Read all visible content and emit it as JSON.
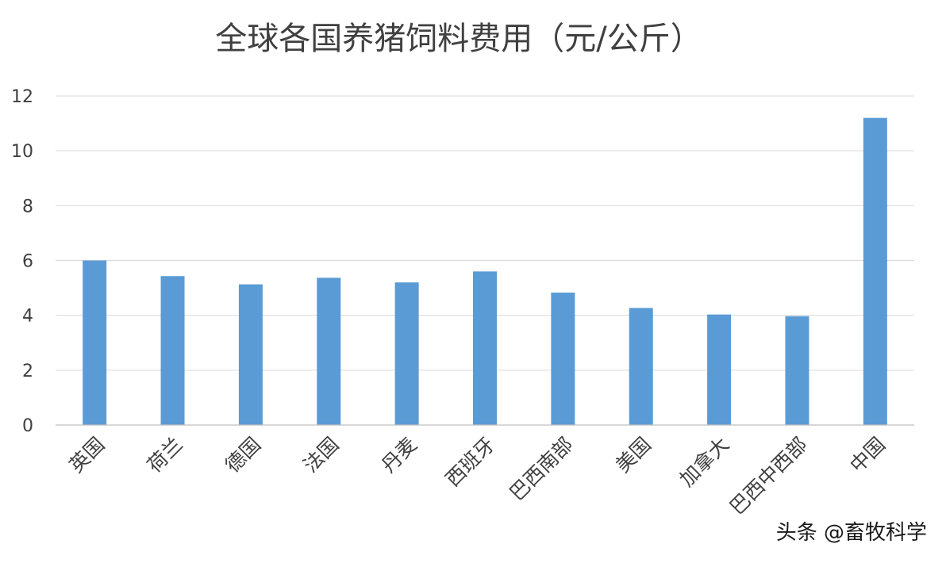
{
  "chart_data": {
    "type": "bar",
    "title": "全球各国养猪饲料费用（元/公斤）",
    "xlabel": "",
    "ylabel": "",
    "categories": [
      "英国",
      "荷兰",
      "德国",
      "法国",
      "丹麦",
      "西班牙",
      "巴西南部",
      "美国",
      "加拿大",
      "巴西中西部",
      "中国"
    ],
    "values": [
      6.0,
      5.43,
      5.13,
      5.37,
      5.2,
      5.6,
      4.83,
      4.27,
      4.03,
      3.97,
      11.2
    ],
    "ylim": [
      0,
      12
    ],
    "yticks": [
      0,
      2,
      4,
      6,
      8,
      10,
      12
    ],
    "grid": true,
    "legend": "none",
    "bar_color": "#5B9BD5"
  },
  "watermark": "头条 @畜牧科学"
}
